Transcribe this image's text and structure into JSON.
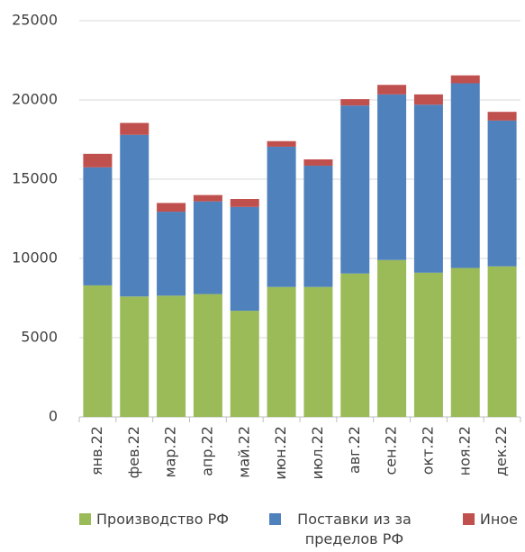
{
  "chart_data": {
    "type": "stacked_bar",
    "categories": [
      "янв.22",
      "фев.22",
      "мар.22",
      "апр.22",
      "май.22",
      "июн.22",
      "июл.22",
      "авг.22",
      "сен.22",
      "окт.22",
      "ноя.22",
      "дек.22"
    ],
    "series": [
      {
        "name": "Производство РФ",
        "color": "#9bbb59",
        "values": [
          8300,
          7600,
          7650,
          7750,
          6700,
          8200,
          8200,
          9050,
          9900,
          9100,
          9400,
          9500
        ]
      },
      {
        "name": "Поставки из за пределов РФ",
        "color": "#4f81bd",
        "values": [
          7450,
          10200,
          5300,
          5850,
          6550,
          8850,
          7650,
          10600,
          10450,
          10600,
          11650,
          9200
        ]
      },
      {
        "name": "Иное",
        "color": "#c0504d",
        "values": [
          850,
          750,
          550,
          400,
          500,
          350,
          400,
          400,
          600,
          650,
          500,
          550
        ]
      }
    ],
    "ylim": [
      0,
      25000
    ],
    "yticks": [
      0,
      5000,
      10000,
      15000,
      20000,
      25000
    ],
    "grid": true,
    "legend": "bottom"
  }
}
